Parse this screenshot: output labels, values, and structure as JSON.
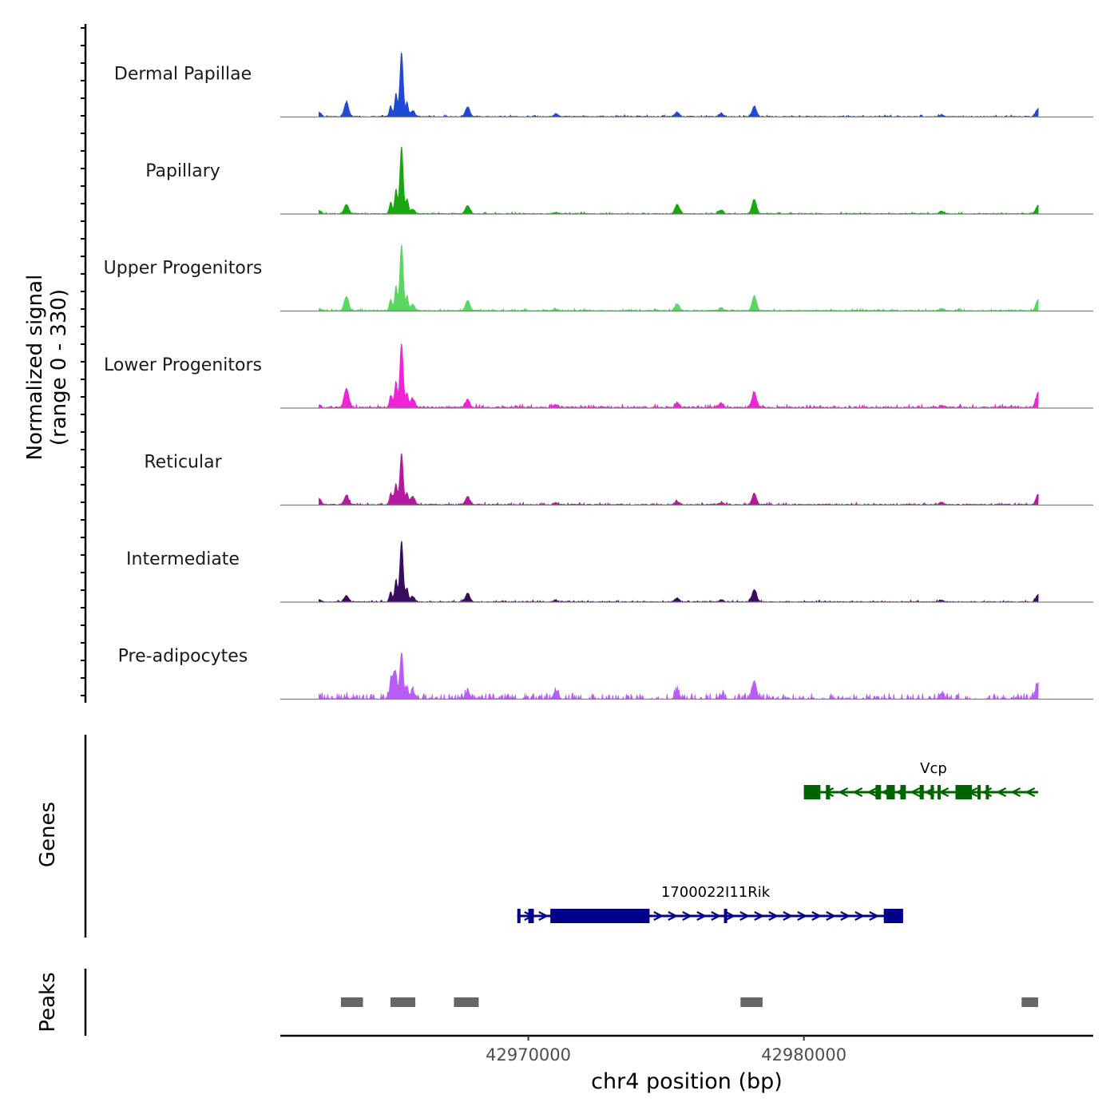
{
  "chart_data": {
    "type": "area",
    "subtype": "genome-coverage-tracks",
    "chromosome": "chr4",
    "xlim": [
      42961000,
      42990500
    ],
    "x_ticks": [
      42970000,
      42980000
    ],
    "x_tick_labels": [
      "42970000",
      "42980000"
    ],
    "xlabel": "chr4 position (bp)",
    "ylabel_line1": "Normalized signal",
    "ylabel_line2": "(range 0 - 330)",
    "ylim": [
      0,
      330
    ],
    "signal_start": 42962400,
    "signal_end": 42988500,
    "tracks": [
      {
        "name": "Dermal Papillae",
        "color": "#1f49d6",
        "peak_heights": [
          22,
          70,
          12,
          315,
          28,
          48,
          14,
          22,
          14,
          50,
          10,
          40
        ],
        "noise": 8,
        "sparse": false
      },
      {
        "name": "Papillary",
        "color": "#19a60e",
        "peak_heights": [
          14,
          45,
          14,
          330,
          22,
          40,
          6,
          45,
          18,
          70,
          12,
          42
        ],
        "noise": 7,
        "sparse": false
      },
      {
        "name": "Upper Progenitors",
        "color": "#5ad662",
        "peak_heights": [
          10,
          70,
          16,
          325,
          30,
          50,
          8,
          30,
          12,
          70,
          10,
          55
        ],
        "noise": 9,
        "sparse": false
      },
      {
        "name": "Lower Progenitors",
        "color": "#ef24d8",
        "peak_heights": [
          10,
          95,
          28,
          315,
          45,
          40,
          12,
          20,
          20,
          75,
          10,
          70
        ],
        "noise": 14,
        "sparse": false
      },
      {
        "name": "Reticular",
        "color": "#b21aa0",
        "peak_heights": [
          30,
          45,
          32,
          250,
          40,
          40,
          8,
          16,
          10,
          55,
          10,
          50
        ],
        "noise": 10,
        "sparse": false
      },
      {
        "name": "Intermediate",
        "color": "#3a0c5e",
        "peak_heights": [
          12,
          30,
          12,
          300,
          26,
          42,
          6,
          20,
          10,
          60,
          8,
          35
        ],
        "noise": 7,
        "sparse": false
      },
      {
        "name": "Pre-adipocytes",
        "color": "#b85cf5",
        "peak_heights": [
          12,
          10,
          110,
          230,
          40,
          38,
          40,
          40,
          20,
          90,
          30,
          80
        ],
        "noise": 30,
        "sparse": true
      }
    ],
    "peak_positions": [
      42962400,
      42963400,
      42965100,
      42965400,
      42965800,
      42967800,
      42971000,
      42975400,
      42977000,
      42978200,
      42985000,
      42988500
    ],
    "genes": [
      {
        "name": "Vcp",
        "strand": "-",
        "start": 42980000,
        "end": 42988500,
        "color": "#006400",
        "exons": [
          [
            42980000,
            42980600
          ],
          [
            42980800,
            42980950
          ],
          [
            42982600,
            42982800
          ],
          [
            42983000,
            42983300
          ],
          [
            42983500,
            42983700
          ],
          [
            42984200,
            42984350
          ],
          [
            42984600,
            42984700
          ],
          [
            42984850,
            42984950
          ],
          [
            42985500,
            42986100
          ],
          [
            42986300,
            42986400
          ],
          [
            42986600,
            42986700
          ]
        ]
      },
      {
        "name": "1700022I11Rik",
        "strand": "+",
        "start": 42969600,
        "end": 42983600,
        "color": "#00008b",
        "exons": [
          [
            42969600,
            42969650
          ],
          [
            42970000,
            42970200
          ],
          [
            42970800,
            42974400
          ],
          [
            42977100,
            42977150
          ],
          [
            42982900,
            42983600
          ]
        ]
      }
    ],
    "peaks_track_label": "Peaks",
    "genes_track_label": "Genes",
    "peaks": [
      [
        42963200,
        42964000
      ],
      [
        42965000,
        42965900
      ],
      [
        42967300,
        42968200
      ],
      [
        42977700,
        42978500
      ],
      [
        42987900,
        42988500
      ]
    ],
    "peak_color": "#666666"
  }
}
